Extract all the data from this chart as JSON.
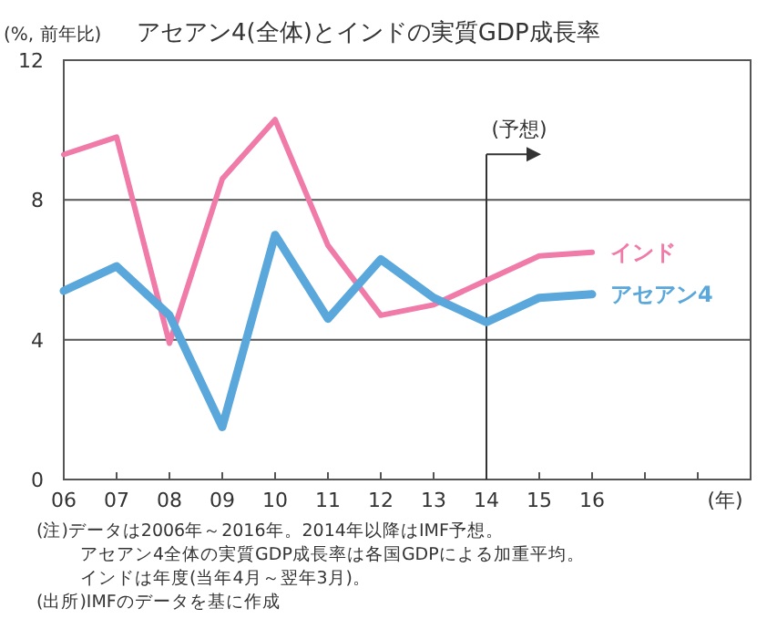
{
  "chart_data": {
    "type": "line",
    "title": "アセアン4(全体)とインドの実質GDP成長率",
    "ylabel": "(%, 前年比)",
    "xlabel": "(年)",
    "x": [
      2006,
      2007,
      2008,
      2009,
      2010,
      2011,
      2012,
      2013,
      2014,
      2015,
      2016
    ],
    "series": [
      {
        "name": "インド",
        "color": "#f07aa8",
        "values": [
          9.3,
          9.8,
          3.9,
          8.6,
          10.3,
          6.7,
          4.7,
          5.0,
          5.7,
          6.4,
          6.5
        ]
      },
      {
        "name": "アセアン4",
        "color": "#5aa7dc",
        "values": [
          5.4,
          6.1,
          4.7,
          1.5,
          7.0,
          4.6,
          6.3,
          5.2,
          4.5,
          5.2,
          5.3
        ]
      }
    ],
    "xlim": [
      2006,
      2019
    ],
    "ylim": [
      0,
      12
    ],
    "yticks": [
      0,
      4,
      8,
      12
    ],
    "xticks": [
      {
        "value": 2006,
        "label": "06"
      },
      {
        "value": 2007,
        "label": "07"
      },
      {
        "value": 2008,
        "label": "08"
      },
      {
        "value": 2009,
        "label": "09"
      },
      {
        "value": 2010,
        "label": "10"
      },
      {
        "value": 2011,
        "label": "11"
      },
      {
        "value": 2012,
        "label": "12"
      },
      {
        "value": 2013,
        "label": "13"
      },
      {
        "value": 2014,
        "label": "14"
      },
      {
        "value": 2015,
        "label": "15"
      },
      {
        "value": 2016,
        "label": "16"
      },
      {
        "value": 2017,
        "label": null
      },
      {
        "value": 2018,
        "label": null
      }
    ],
    "grid": "y",
    "legend": false,
    "marker": "none",
    "line_style": "solid",
    "ref_lines": [
      {
        "axis": "x",
        "value": 2014,
        "label": "(予想)",
        "color": "#333333"
      }
    ],
    "annotations": [
      "(注)データは2006年～2016年。2014年以降はIMF予想。",
      "アセアン4全体の実質GDP成長率は各国GDPによる加重平均。",
      "インドは年度(当年4月～翌年3月)。",
      "(出所)IMFのデータを基に作成"
    ]
  }
}
